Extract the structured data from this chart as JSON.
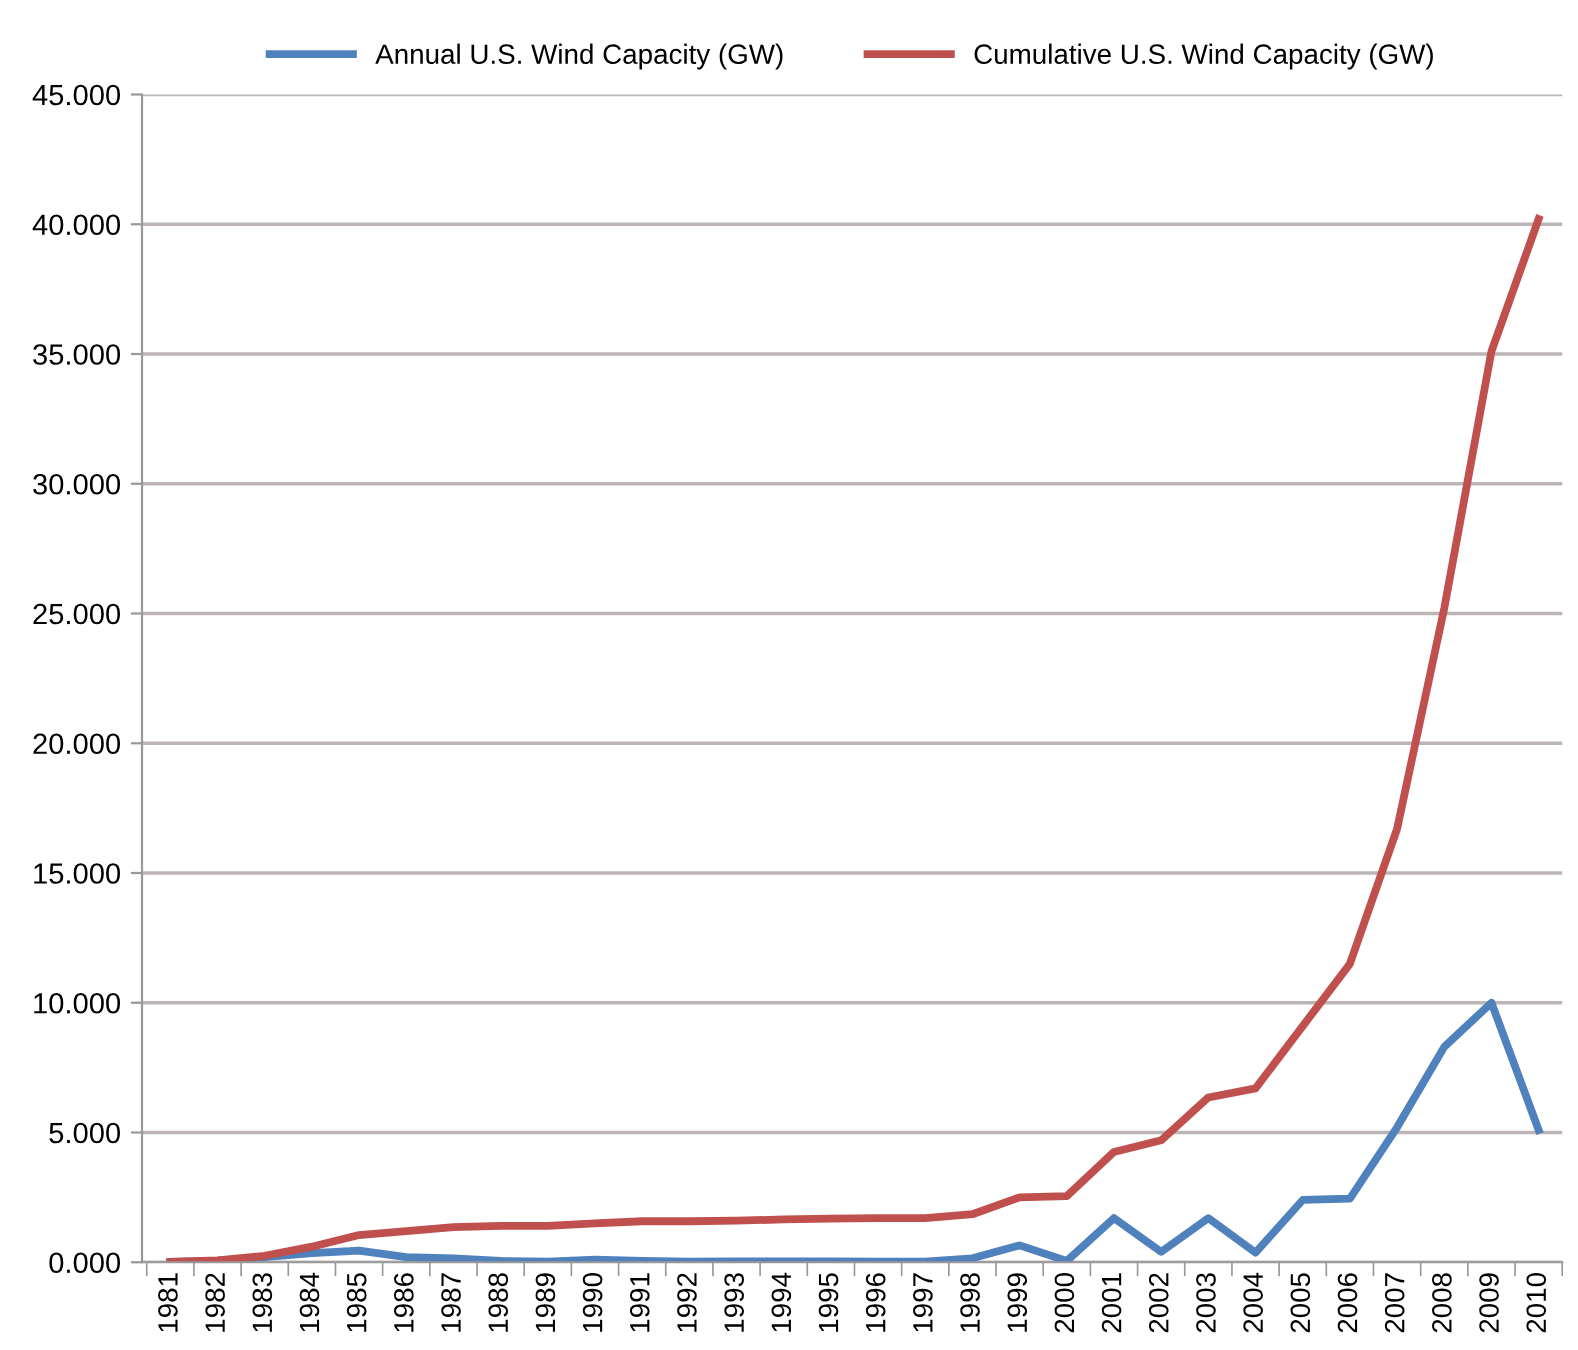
{
  "chart_data": {
    "type": "line",
    "categories": [
      "1981",
      "1982",
      "1983",
      "1984",
      "1985",
      "1986",
      "1987",
      "1988",
      "1989",
      "1990",
      "1991",
      "1992",
      "1993",
      "1994",
      "1995",
      "1996",
      "1997",
      "1998",
      "1999",
      "2000",
      "2001",
      "2002",
      "2003",
      "2004",
      "2005",
      "2006",
      "2007",
      "2008",
      "2009",
      "2010"
    ],
    "series": [
      {
        "name": "Annual U.S. Wind Capacity (GW)",
        "color": "#4f81bd",
        "values": [
          0.01,
          0.06,
          0.2,
          0.35,
          0.45,
          0.2,
          0.15,
          0.05,
          0.02,
          0.1,
          0.05,
          0.02,
          0.03,
          0.03,
          0.03,
          0.02,
          0.02,
          0.15,
          0.65,
          0.05,
          1.7,
          0.4,
          1.7,
          0.37,
          2.4,
          2.45,
          5.2,
          8.3,
          10.0,
          5.1
        ]
      },
      {
        "name": "Cumulative U.S. Wind Capacity (GW)",
        "color": "#c0504d",
        "values": [
          0.01,
          0.07,
          0.25,
          0.6,
          1.05,
          1.2,
          1.35,
          1.4,
          1.4,
          1.5,
          1.58,
          1.58,
          1.6,
          1.65,
          1.68,
          1.7,
          1.7,
          1.85,
          2.5,
          2.55,
          4.25,
          4.7,
          6.35,
          6.7,
          9.1,
          11.5,
          16.7,
          25.2,
          35.1,
          40.2
        ]
      }
    ],
    "ylim": [
      0,
      45
    ],
    "yticks": [
      {
        "value": 0,
        "label": "0.000"
      },
      {
        "value": 5,
        "label": "5.000"
      },
      {
        "value": 10,
        "label": "10.000"
      },
      {
        "value": 15,
        "label": "15.000"
      },
      {
        "value": 20,
        "label": "20.000"
      },
      {
        "value": 25,
        "label": "25.000"
      },
      {
        "value": 30,
        "label": "30.000"
      },
      {
        "value": 35,
        "label": "35.000"
      },
      {
        "value": 40,
        "label": "40.000"
      },
      {
        "value": 45,
        "label": "45.000"
      }
    ],
    "grid": "y",
    "legend": "top",
    "marker": "none",
    "line_style": "solid"
  }
}
